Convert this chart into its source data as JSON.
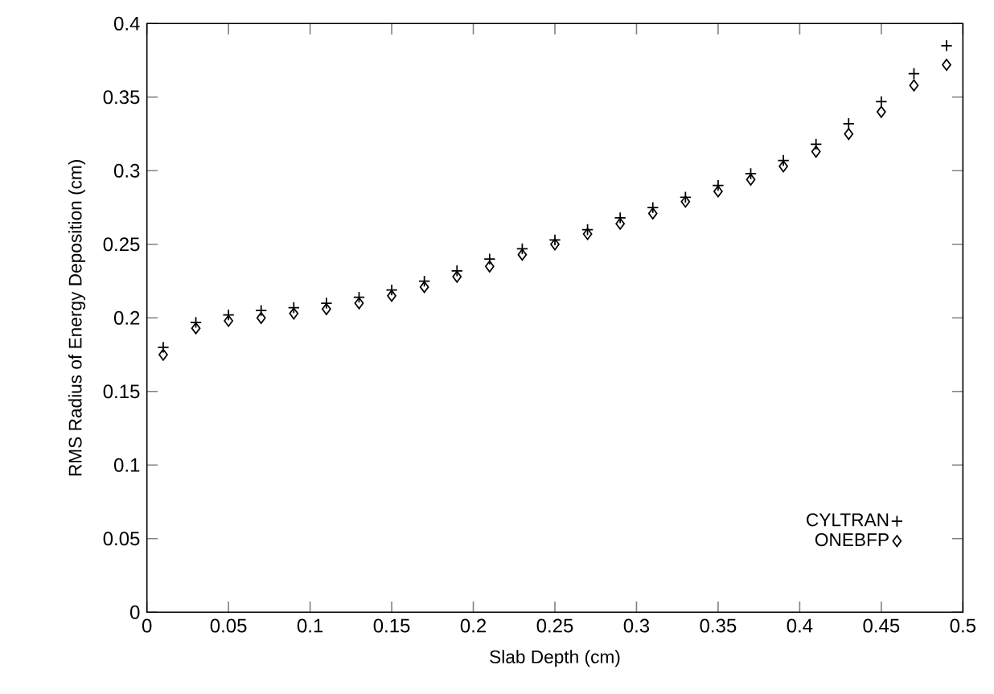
{
  "chart_data": {
    "type": "scatter",
    "xlabel": "Slab Depth (cm)",
    "ylabel": "RMS Radius of Energy Deposition (cm)",
    "x": [
      0.01,
      0.03,
      0.05,
      0.07,
      0.09,
      0.11,
      0.13,
      0.15,
      0.17,
      0.19,
      0.21,
      0.23,
      0.25,
      0.27,
      0.29,
      0.31,
      0.33,
      0.35,
      0.37,
      0.39,
      0.41,
      0.43,
      0.45,
      0.47,
      0.49
    ],
    "series": [
      {
        "name": "CYLTRAN",
        "color": "#000000",
        "marker": "cross",
        "values": [
          0.18,
          0.197,
          0.202,
          0.205,
          0.207,
          0.21,
          0.214,
          0.219,
          0.225,
          0.232,
          0.24,
          0.247,
          0.253,
          0.26,
          0.268,
          0.275,
          0.282,
          0.29,
          0.298,
          0.307,
          0.318,
          0.332,
          0.347,
          0.366,
          0.385
        ]
      },
      {
        "name": "ONEBFP",
        "color": "#000000",
        "marker": "diamond",
        "values": [
          0.175,
          0.193,
          0.198,
          0.2,
          0.203,
          0.206,
          0.21,
          0.215,
          0.221,
          0.228,
          0.235,
          0.243,
          0.25,
          0.257,
          0.264,
          0.271,
          0.279,
          0.286,
          0.294,
          0.303,
          0.313,
          0.325,
          0.34,
          0.358,
          0.372
        ]
      }
    ],
    "xlim": [
      0,
      0.5
    ],
    "ylim": [
      0,
      0.4
    ],
    "xticks": [
      0,
      0.05,
      0.1,
      0.15,
      0.2,
      0.25,
      0.3,
      0.35,
      0.4,
      0.45,
      0.5
    ],
    "yticks": [
      0,
      0.05,
      0.1,
      0.15,
      0.2,
      0.25,
      0.3,
      0.35,
      0.4
    ],
    "legend": "bottom right",
    "grid": false
  }
}
